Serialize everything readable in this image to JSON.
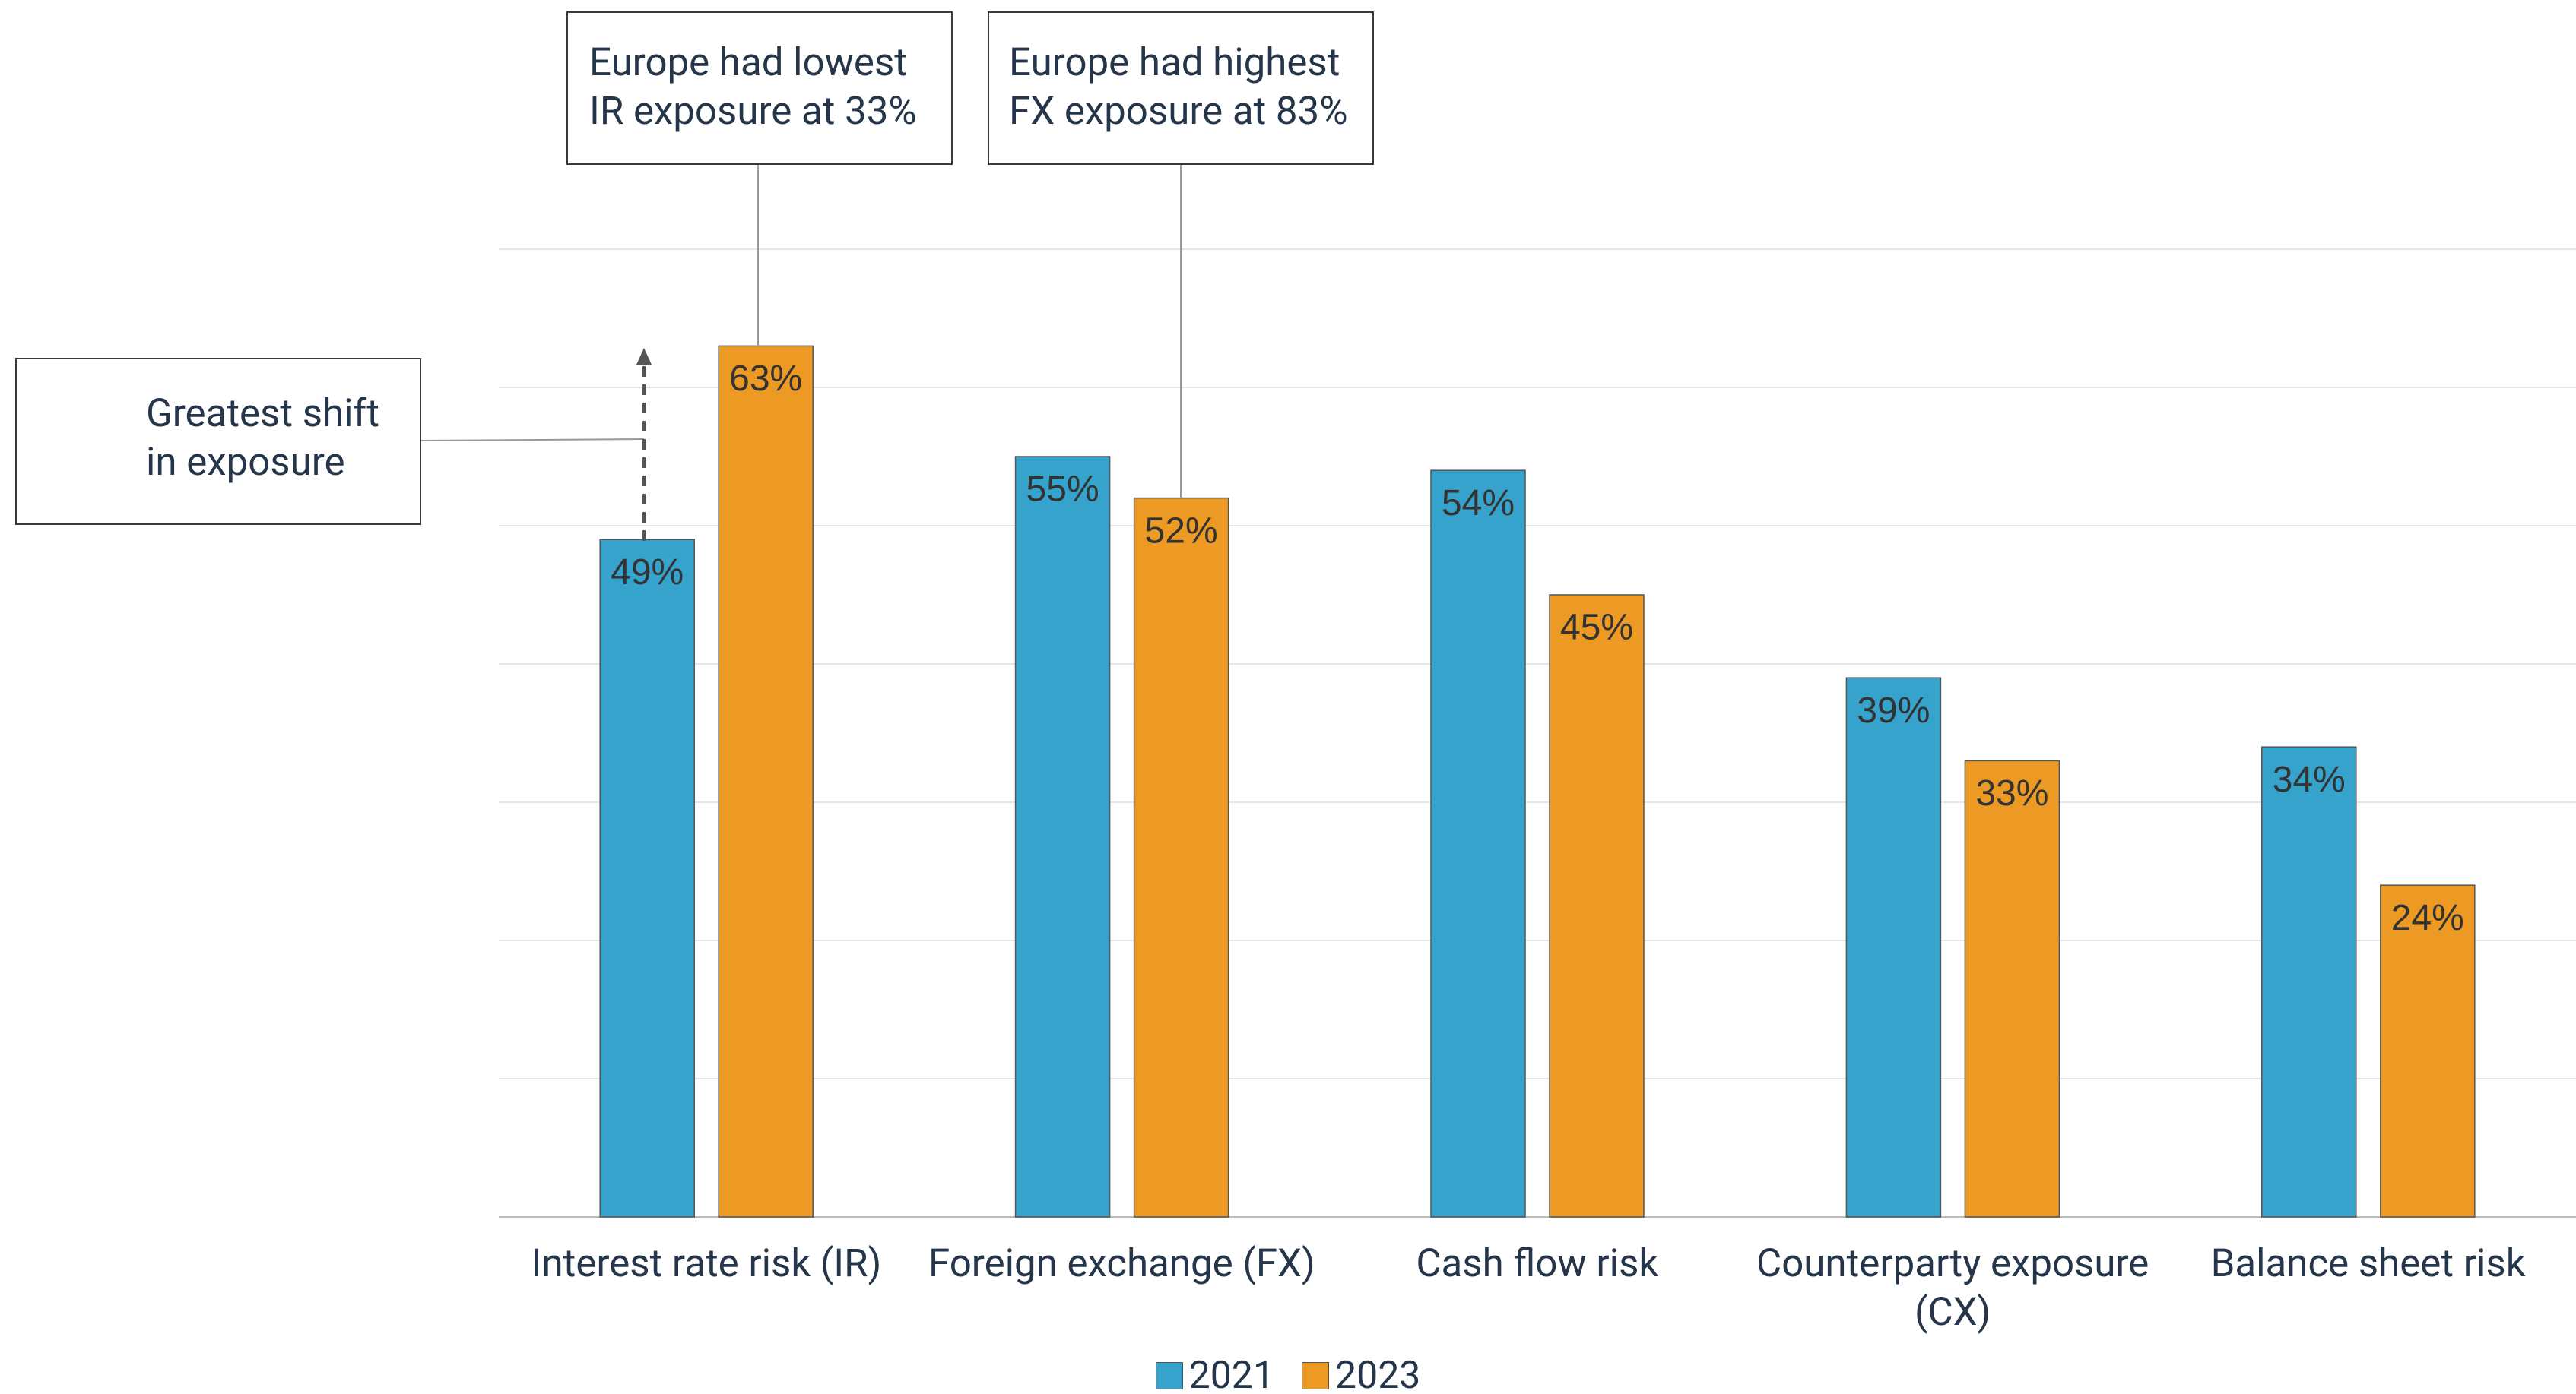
{
  "chart_data": {
    "type": "bar",
    "categories": [
      "Interest rate risk (IR)",
      "Foreign exchange (FX)",
      "Cash flow risk",
      "Counterparty exposure (CX)",
      "Balance sheet risk"
    ],
    "series": [
      {
        "name": "2021",
        "color": "#35a3cc",
        "values": [
          49,
          55,
          54,
          39,
          34
        ],
        "value_labels": [
          "49%",
          "55%",
          "54%",
          "39%",
          "34%"
        ]
      },
      {
        "name": "2023",
        "color": "#ec9a24",
        "values": [
          63,
          52,
          45,
          33,
          24
        ],
        "value_labels": [
          "63%",
          "52%",
          "45%",
          "33%",
          "24%"
        ]
      }
    ],
    "ylim": [
      0,
      70
    ],
    "yticks": [
      0,
      10,
      20,
      30,
      40,
      50,
      60,
      70
    ],
    "grid": true,
    "legend": "bottom",
    "annotations": [
      {
        "lines": [
          "Europe had lowest",
          "IR exposure at 33%"
        ]
      },
      {
        "lines": [
          "Europe had highest",
          "FX exposure at 83%"
        ]
      },
      {
        "lines": [
          "Greatest shift",
          "in exposure"
        ]
      }
    ]
  }
}
